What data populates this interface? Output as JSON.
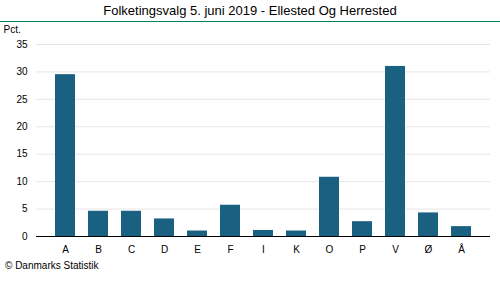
{
  "chart_data": {
    "type": "bar",
    "title": "Folketingsvalg 5. juni 2019 - Ellested Og Herrested",
    "ylabel": "Pct.",
    "caption": "© Danmarks Statistik",
    "categories": [
      "A",
      "B",
      "C",
      "D",
      "E",
      "F",
      "I",
      "K",
      "O",
      "P",
      "V",
      "Ø",
      "Å"
    ],
    "values": [
      29.5,
      4.6,
      4.6,
      3.2,
      1.0,
      5.7,
      1.1,
      1.0,
      10.8,
      2.7,
      31.0,
      4.3,
      1.8
    ],
    "color": "#1a6080",
    "ylim": [
      0,
      35
    ],
    "yticks": [
      0,
      5,
      10,
      15,
      20,
      25,
      30,
      35
    ],
    "grid": true
  }
}
